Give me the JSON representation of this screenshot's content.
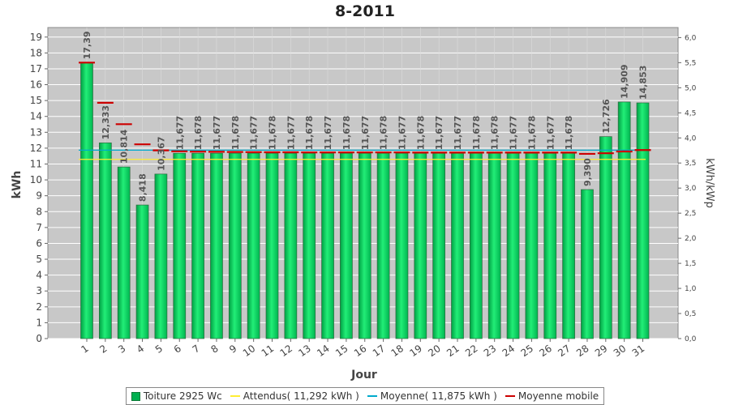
{
  "chart_data": {
    "type": "bar",
    "title": "8-2011",
    "xlabel": "Jour",
    "ylabel": "kWh",
    "y2label": "kWh/kWp",
    "ylim": [
      0,
      19.6
    ],
    "y2lim": [
      0,
      6.2
    ],
    "yticks": [
      "0",
      "1",
      "2",
      "3",
      "4",
      "5",
      "6",
      "7",
      "8",
      "9",
      "10",
      "11",
      "12",
      "13",
      "14",
      "15",
      "16",
      "17",
      "18",
      "19"
    ],
    "y2ticks": [
      "0,0",
      "0,5",
      "1,0",
      "1,5",
      "2,0",
      "2,5",
      "3,0",
      "3,5",
      "4,0",
      "4,5",
      "5,0",
      "5,5",
      "6,0"
    ],
    "categories": [
      "1",
      "2",
      "3",
      "4",
      "5",
      "6",
      "7",
      "8",
      "9",
      "10",
      "11",
      "12",
      "13",
      "14",
      "15",
      "16",
      "17",
      "18",
      "19",
      "20",
      "21",
      "22",
      "23",
      "24",
      "25",
      "26",
      "27",
      "28",
      "29",
      "30",
      "31"
    ],
    "series": [
      {
        "name": "Toiture 2925 Wc",
        "color": "#00c853",
        "values": [
          17.39,
          12.333,
          10.814,
          8.418,
          10.367,
          11.677,
          11.678,
          11.677,
          11.678,
          11.677,
          11.678,
          11.677,
          11.678,
          11.677,
          11.678,
          11.677,
          11.678,
          11.677,
          11.678,
          11.677,
          11.677,
          11.678,
          11.678,
          11.677,
          11.678,
          11.677,
          11.678,
          9.39,
          12.726,
          14.909,
          14.853
        ],
        "labels": [
          "17,39",
          "12,333",
          "10,814",
          "8,418",
          "10,367",
          "11,677",
          "11,678",
          "11,677",
          "11,678",
          "11,677",
          "11,678",
          "11,677",
          "11,678",
          "11,677",
          "11,678",
          "11,677",
          "11,678",
          "11,677",
          "11,678",
          "11,677",
          "11,677",
          "11,678",
          "11,678",
          "11,677",
          "11,678",
          "11,677",
          "11,678",
          "9,390",
          "12,726",
          "14,909",
          "14,853"
        ]
      },
      {
        "name": "Moyenne mobile",
        "color": "#cc0000",
        "values": [
          17.39,
          14.86,
          13.51,
          12.24,
          11.86,
          11.8,
          11.78,
          11.77,
          11.76,
          11.75,
          11.74,
          11.74,
          11.73,
          11.73,
          11.73,
          11.73,
          11.73,
          11.73,
          11.72,
          11.72,
          11.72,
          11.72,
          11.72,
          11.72,
          11.72,
          11.72,
          11.72,
          11.64,
          11.68,
          11.79,
          11.88
        ]
      }
    ],
    "reference_lines": [
      {
        "name": "Attendus( 11,292 kWh )",
        "value": 11.292,
        "color": "#ffee33"
      },
      {
        "name": "Moyenne( 11,875 kWh )",
        "value": 11.875,
        "color": "#00aacc"
      }
    ],
    "grid": true,
    "legend": "bottom"
  }
}
